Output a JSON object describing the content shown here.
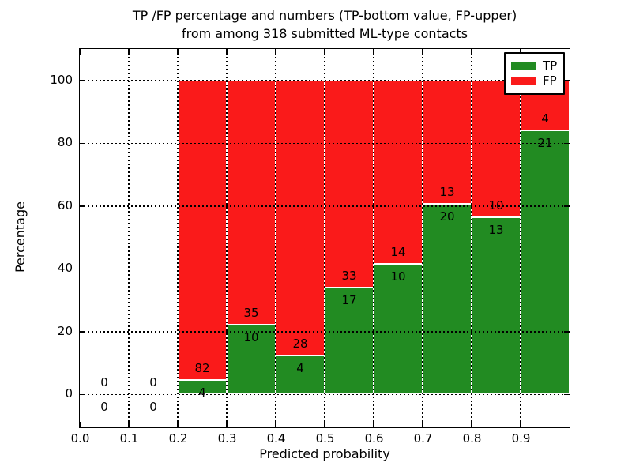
{
  "chart_data": {
    "type": "bar",
    "stacked": true,
    "normalized_to_percent": true,
    "title_lines": [
      "TP /FP percentage and numbers (TP-bottom value, FP-upper)",
      "from among 318 submitted ML-type contacts"
    ],
    "total_contacts": 318,
    "xlabel": "Predicted probability",
    "ylabel": "Percentage",
    "xlim": [
      0.0,
      1.0
    ],
    "ylim": [
      -10.5,
      110
    ],
    "xticks": [
      "0.0",
      "0.1",
      "0.2",
      "0.3",
      "0.4",
      "0.5",
      "0.6",
      "0.7",
      "0.8",
      "0.9"
    ],
    "yticks": [
      0,
      20,
      40,
      60,
      80,
      100
    ],
    "grid": "dotted",
    "colors": {
      "tp": "#228b22",
      "fp": "#fa1a1a"
    },
    "legend": {
      "position": "upper-right",
      "entries": [
        {
          "label": "TP",
          "color": "#228b22"
        },
        {
          "label": "FP",
          "color": "#fa1a1a"
        }
      ]
    },
    "bins": [
      {
        "range": [
          0.0,
          0.1
        ],
        "tp": 0,
        "fp": 0
      },
      {
        "range": [
          0.1,
          0.2
        ],
        "tp": 0,
        "fp": 0
      },
      {
        "range": [
          0.2,
          0.3
        ],
        "tp": 4,
        "fp": 82
      },
      {
        "range": [
          0.3,
          0.4
        ],
        "tp": 10,
        "fp": 35
      },
      {
        "range": [
          0.4,
          0.5
        ],
        "tp": 4,
        "fp": 28
      },
      {
        "range": [
          0.5,
          0.6
        ],
        "tp": 17,
        "fp": 33
      },
      {
        "range": [
          0.6,
          0.7
        ],
        "tp": 10,
        "fp": 14
      },
      {
        "range": [
          0.7,
          0.8
        ],
        "tp": 20,
        "fp": 13
      },
      {
        "range": [
          0.8,
          0.9
        ],
        "tp": 13,
        "fp": 10
      },
      {
        "range": [
          0.9,
          1.0
        ],
        "tp": 21,
        "fp": 4
      }
    ]
  }
}
